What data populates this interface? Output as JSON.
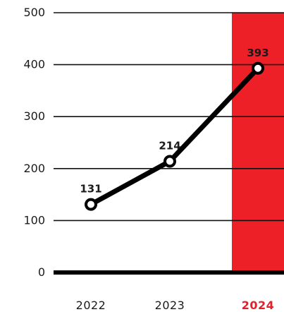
{
  "chart_data": {
    "type": "line",
    "x": [
      "2022",
      "2023",
      "2024"
    ],
    "values": [
      131,
      214,
      393
    ],
    "data_labels": [
      "131",
      "214",
      "393"
    ],
    "ylim": [
      0,
      500
    ],
    "yticks": [
      0,
      100,
      200,
      300,
      400,
      500
    ],
    "ytick_labels": [
      "0",
      "100",
      "200",
      "300",
      "400",
      "500"
    ],
    "highlight_category": "2024",
    "grid": true,
    "colors": {
      "line": "#000000",
      "highlight_band": "#ee2027",
      "highlight_label": "#e3202a",
      "marker_fill": "#ffffff"
    }
  }
}
